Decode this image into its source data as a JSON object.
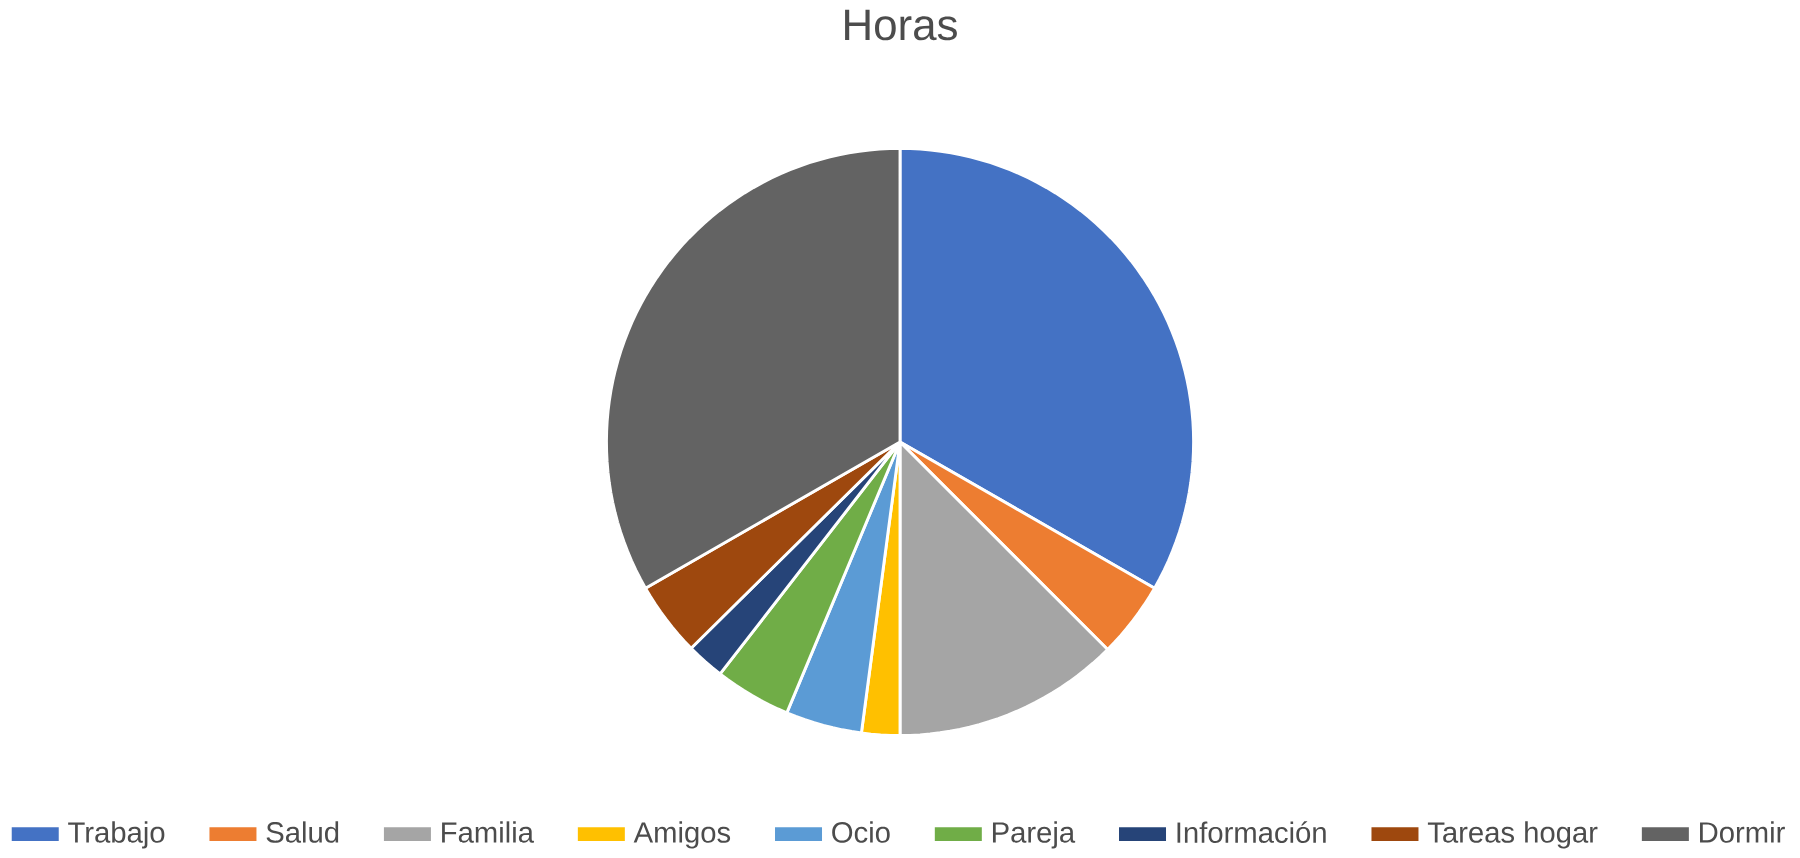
{
  "chart_data": {
    "type": "pie",
    "title": "Horas",
    "categories": [
      "Trabajo",
      "Salud",
      "Familia",
      "Amigos",
      "Ocio",
      "Pareja",
      "Información",
      "Tareas hogar",
      "Dormir"
    ],
    "values": [
      33.3,
      4.2,
      12.5,
      2.1,
      4.2,
      4.2,
      2.1,
      4.1,
      33.3
    ],
    "colors": [
      "#4472c4",
      "#ed7d31",
      "#a5a5a5",
      "#ffc000",
      "#5b9bd5",
      "#70ad47",
      "#264478",
      "#9e480e",
      "#636363"
    ],
    "legend": "bottom"
  }
}
